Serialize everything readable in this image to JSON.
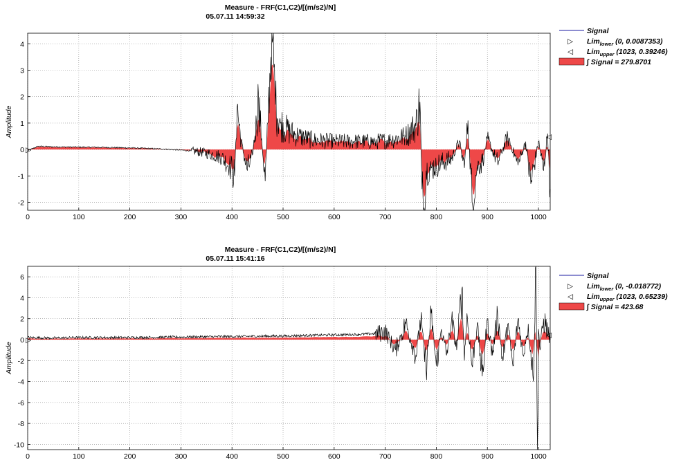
{
  "chart_data": [
    {
      "type": "area",
      "title": "Measure - FRF(C1,C2)/[(m/s2)/N]",
      "subtitle": "05.07.11 14:59:32",
      "xlabel": "",
      "ylabel": "Amplitude",
      "xlim": [
        0,
        1023
      ],
      "ylim": [
        -2.3,
        4.4
      ],
      "xticks": [
        0,
        100,
        200,
        300,
        400,
        500,
        600,
        700,
        800,
        900,
        1000
      ],
      "yticks": [
        -2,
        -1,
        0,
        1,
        2,
        3,
        4
      ],
      "grid": true,
      "legend_position": "right",
      "series": [
        {
          "name": "Signal",
          "color": "#000000",
          "x": [
            0,
            20,
            50,
            100,
            150,
            200,
            250,
            280,
            300,
            320,
            340,
            360,
            380,
            395,
            405,
            410,
            418,
            430,
            440,
            448,
            452,
            458,
            465,
            470,
            476,
            480,
            485,
            495,
            510,
            530,
            560,
            600,
            640,
            680,
            710,
            740,
            760,
            768,
            772,
            776,
            780,
            790,
            800,
            830,
            845,
            855,
            862,
            870,
            880,
            890,
            900,
            920,
            940,
            960,
            975,
            985,
            1000,
            1010,
            1018,
            1023
          ],
          "y": [
            -0.05,
            0.12,
            0.1,
            0.09,
            0.08,
            0.06,
            0.03,
            0.0,
            -0.02,
            -0.05,
            -0.1,
            -0.18,
            -0.3,
            -0.6,
            -1.0,
            1.6,
            0.3,
            -0.8,
            -0.2,
            1.0,
            2.0,
            0.4,
            -1.2,
            1.0,
            3.5,
            4.2,
            1.7,
            1.0,
            0.7,
            0.5,
            0.35,
            0.3,
            0.3,
            0.3,
            0.35,
            0.5,
            0.9,
            1.8,
            -1.5,
            -2.2,
            -0.8,
            -0.7,
            -0.6,
            -0.35,
            0.3,
            -0.7,
            1.1,
            -2.0,
            -0.6,
            -0.5,
            0.4,
            -0.5,
            0.5,
            -0.6,
            0.3,
            -1.3,
            0.3,
            -0.8,
            0.6,
            -1.5
          ]
        }
      ],
      "legend": [
        {
          "label": "Signal",
          "marker": "line",
          "color": "#1a1aa0"
        },
        {
          "label": "Lim",
          "sub": "lower",
          "value": "(0, 0.0087353)",
          "marker": "▷"
        },
        {
          "label": "Lim",
          "sub": "upper",
          "value": "(1023, 0.39246)",
          "marker": "◁"
        },
        {
          "label": "∫ Signal = 279.8701",
          "marker": "patch",
          "color": "#ee4848"
        }
      ]
    },
    {
      "type": "area",
      "title": "Measure - FRF(C1,C2)/[(m/s2)/N]",
      "subtitle": "05.07.11 15:41:16",
      "xlabel": "",
      "ylabel": "Amplitude",
      "xlim": [
        0,
        1023
      ],
      "ylim": [
        -10.5,
        7
      ],
      "xticks": [
        0,
        100,
        200,
        300,
        400,
        500,
        600,
        700,
        800,
        900,
        1000
      ],
      "yticks": [
        -10,
        -8,
        -6,
        -4,
        -2,
        0,
        2,
        4,
        6
      ],
      "grid": true,
      "legend_position": "right",
      "series": [
        {
          "name": "Signal",
          "color": "#000000",
          "x": [
            0,
            50,
            100,
            200,
            300,
            400,
            500,
            550,
            600,
            650,
            690,
            700,
            720,
            740,
            760,
            770,
            780,
            790,
            800,
            810,
            820,
            830,
            840,
            850,
            855,
            860,
            870,
            880,
            890,
            900,
            910,
            920,
            930,
            940,
            950,
            960,
            970,
            980,
            990,
            995,
            998,
            1000,
            1003,
            1010,
            1023
          ],
          "y": [
            0.2,
            0.15,
            0.2,
            0.2,
            0.25,
            0.3,
            0.35,
            0.4,
            0.45,
            0.5,
            0.6,
            0.8,
            -1.0,
            1.5,
            -1.5,
            2.0,
            -3.0,
            2.5,
            -2.5,
            1.0,
            -1.5,
            2.0,
            -1.0,
            4.8,
            -2.0,
            2.5,
            -2.5,
            1.5,
            -3.5,
            2.0,
            -1.5,
            2.5,
            -2.0,
            1.5,
            -2.5,
            2.0,
            -1.5,
            1.5,
            -4.0,
            7.0,
            -10.5,
            1.0,
            -1.0,
            2.0,
            0.0
          ]
        }
      ],
      "legend": [
        {
          "label": "Signal",
          "marker": "line",
          "color": "#1a1aa0"
        },
        {
          "label": "Lim",
          "sub": "lower",
          "value": "(0, -0.018772)",
          "marker": "▷"
        },
        {
          "label": "Lim",
          "sub": "upper",
          "value": "(1023, 0.65239)",
          "marker": "◁"
        },
        {
          "label": "∫ Signal = 423.68",
          "marker": "patch",
          "color": "#ee4848"
        }
      ]
    }
  ]
}
